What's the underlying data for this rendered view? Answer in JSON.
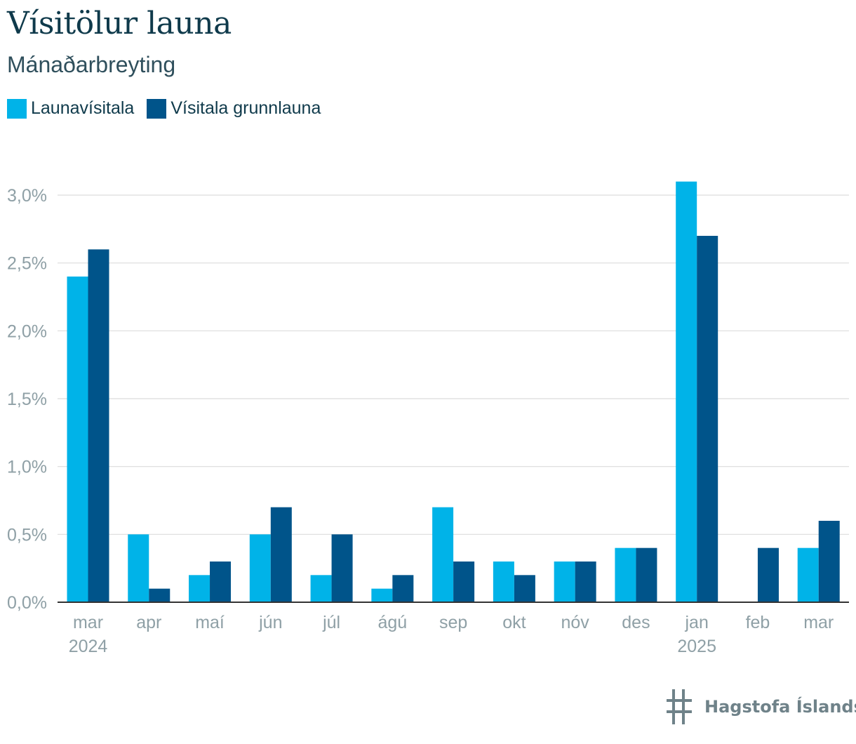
{
  "title": "Vísitölur launa",
  "subtitle": "Mánaðarbreyting",
  "legend": {
    "items": [
      {
        "label": "Launavísitala",
        "color": "#00b3e8"
      },
      {
        "label": "Vísitala grunnlauna",
        "color": "#00548a"
      }
    ]
  },
  "logo": {
    "text": "Hagstofa Íslands",
    "icon": "hagstofa-logo-icon"
  },
  "chart_data": {
    "type": "bar",
    "categories": [
      "mar",
      "apr",
      "maí",
      "jún",
      "júl",
      "ágú",
      "sep",
      "okt",
      "nóv",
      "des",
      "jan",
      "feb",
      "mar"
    ],
    "year_labels": [
      "2024",
      "",
      "",
      "",
      "",
      "",
      "",
      "",
      "",
      "",
      "2025",
      "",
      ""
    ],
    "series": [
      {
        "name": "Launavísitala",
        "color": "#00b3e8",
        "values": [
          2.4,
          0.5,
          0.2,
          0.5,
          0.2,
          0.1,
          0.7,
          0.3,
          0.3,
          0.4,
          3.1,
          0.0,
          0.4
        ]
      },
      {
        "name": "Vísitala grunnlauna",
        "color": "#00548a",
        "values": [
          2.6,
          0.1,
          0.3,
          0.7,
          0.5,
          0.2,
          0.3,
          0.2,
          0.3,
          0.4,
          2.7,
          0.4,
          0.6
        ]
      }
    ],
    "yticks": [
      0.0,
      0.5,
      1.0,
      1.5,
      2.0,
      2.5,
      3.0
    ],
    "ytick_labels": [
      "0,0%",
      "0,5%",
      "1,0%",
      "1,5%",
      "2,0%",
      "2,5%",
      "3,0%"
    ],
    "ylim": [
      0,
      3.0
    ],
    "grid": true,
    "legend_position": "top-left"
  }
}
